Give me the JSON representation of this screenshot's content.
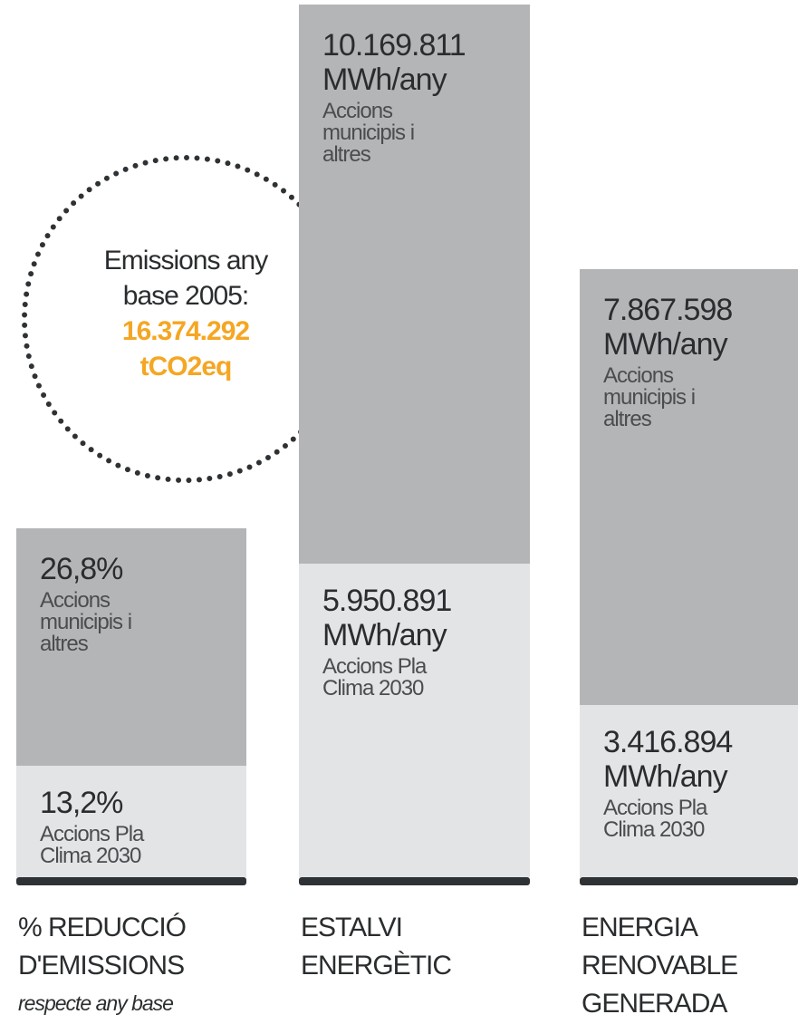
{
  "circle": {
    "lines": [
      "Emissions any",
      "base 2005:"
    ],
    "highlight": [
      "16.374.292",
      "tCO2eq"
    ]
  },
  "columns": [
    {
      "segments": [
        {
          "value": "26,8%",
          "label": [
            "Accions",
            "municipis i",
            "altres"
          ]
        },
        {
          "value": "13,2%",
          "label": [
            "Accions Pla",
            "Clima 2030"
          ]
        }
      ],
      "title": [
        "% REDUCCIÓ",
        "D'EMISSIONS"
      ],
      "subtitle": "respecte any base"
    },
    {
      "segments": [
        {
          "value": "10.169.811",
          "unit": "MWh/any",
          "label": [
            "Accions",
            "municipis i",
            "altres"
          ]
        },
        {
          "value": "5.950.891",
          "unit": "MWh/any",
          "label": [
            "Accions Pla",
            "Clima 2030"
          ]
        }
      ],
      "title": [
        "ESTALVI",
        "ENERGÈTIC"
      ]
    },
    {
      "segments": [
        {
          "value": "7.867.598",
          "unit": "MWh/any",
          "label": [
            "Accions",
            "municipis i",
            "altres"
          ]
        },
        {
          "value": "3.416.894",
          "unit": "MWh/any",
          "label": [
            "Accions Pla",
            "Clima 2030"
          ]
        }
      ],
      "title": [
        "ENERGIA",
        "RENOVABLE",
        "GENERADA"
      ]
    }
  ]
}
